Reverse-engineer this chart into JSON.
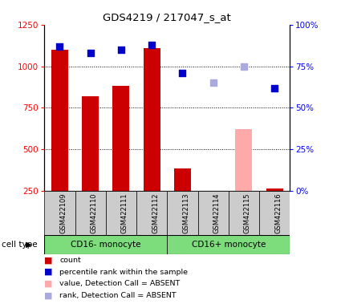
{
  "title": "GDS4219 / 217047_s_at",
  "samples": [
    "GSM422109",
    "GSM422110",
    "GSM422111",
    "GSM422112",
    "GSM422113",
    "GSM422114",
    "GSM422115",
    "GSM422116"
  ],
  "bar_values": [
    1100,
    820,
    880,
    1110,
    385,
    null,
    620,
    265
  ],
  "bar_absent": [
    false,
    false,
    false,
    false,
    false,
    true,
    true,
    false
  ],
  "rank_pct": [
    87,
    83,
    85,
    88,
    71,
    65,
    75,
    62
  ],
  "rank_absent": [
    false,
    false,
    false,
    false,
    false,
    true,
    true,
    false
  ],
  "bar_color_present": "#cc0000",
  "bar_color_absent": "#ffaaaa",
  "rank_color_present": "#0000cc",
  "rank_color_absent": "#aaaadd",
  "ylim_left": [
    250,
    1250
  ],
  "ylim_right": [
    0,
    100
  ],
  "yticks_left": [
    250,
    500,
    750,
    1000,
    1250
  ],
  "yticks_right": [
    0,
    25,
    50,
    75,
    100
  ],
  "grid_yticks": [
    500,
    750,
    1000
  ],
  "bar_width": 0.55,
  "cell_type_bg": "#7ddd7d",
  "sample_bg": "#cccccc",
  "ct_labels": [
    "CD16- monocyte",
    "CD16+ monocyte"
  ],
  "ct_boundaries": [
    0,
    4,
    8
  ]
}
